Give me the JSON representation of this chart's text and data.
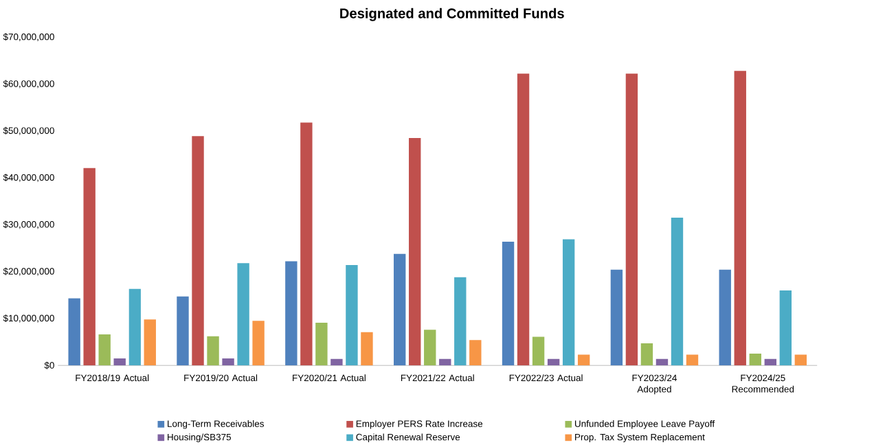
{
  "chart_data": {
    "type": "bar",
    "title": "Designated and Committed Funds",
    "categories": [
      "FY2018/19 Actual",
      "FY2019/20 Actual",
      "FY2020/21 Actual",
      "FY2021/22 Actual",
      "FY2022/23 Actual",
      "FY2023/24 Adopted",
      "FY2024/25 Recommended"
    ],
    "series": [
      {
        "name": "Long-Term Receivables",
        "color": "#4f81bd",
        "values": [
          14300000,
          14700000,
          22200000,
          23800000,
          26400000,
          20400000,
          20400000
        ]
      },
      {
        "name": "Employer PERS Rate Increase",
        "color": "#c0504d",
        "values": [
          42100000,
          48900000,
          51800000,
          48500000,
          62200000,
          62200000,
          62800000
        ]
      },
      {
        "name": "Unfunded Employee Leave Payoff",
        "color": "#9bbb59",
        "values": [
          6600000,
          6200000,
          9100000,
          7600000,
          6100000,
          4700000,
          2500000
        ]
      },
      {
        "name": "Housing/SB375",
        "color": "#8064a2",
        "values": [
          1500000,
          1500000,
          1400000,
          1400000,
          1400000,
          1400000,
          1400000
        ]
      },
      {
        "name": "Capital Renewal Reserve",
        "color": "#4bacc6",
        "values": [
          16300000,
          21800000,
          21400000,
          18800000,
          26900000,
          31500000,
          16000000
        ]
      },
      {
        "name": "Prop. Tax System Replacement",
        "color": "#f79646",
        "values": [
          9800000,
          9500000,
          7100000,
          5400000,
          2300000,
          2300000,
          2300000
        ]
      }
    ],
    "ylim": [
      0,
      70000000
    ],
    "yticks": [
      {
        "value": 0,
        "label": "$0"
      },
      {
        "value": 10000000,
        "label": "$10,000,000"
      },
      {
        "value": 20000000,
        "label": "$20,000,000"
      },
      {
        "value": 30000000,
        "label": "$30,000,000"
      },
      {
        "value": 40000000,
        "label": "$40,000,000"
      },
      {
        "value": 50000000,
        "label": "$50,000,000"
      },
      {
        "value": 60000000,
        "label": "$60,000,000"
      },
      {
        "value": 70000000,
        "label": "$70,000,000"
      }
    ],
    "legend": "bottom"
  }
}
